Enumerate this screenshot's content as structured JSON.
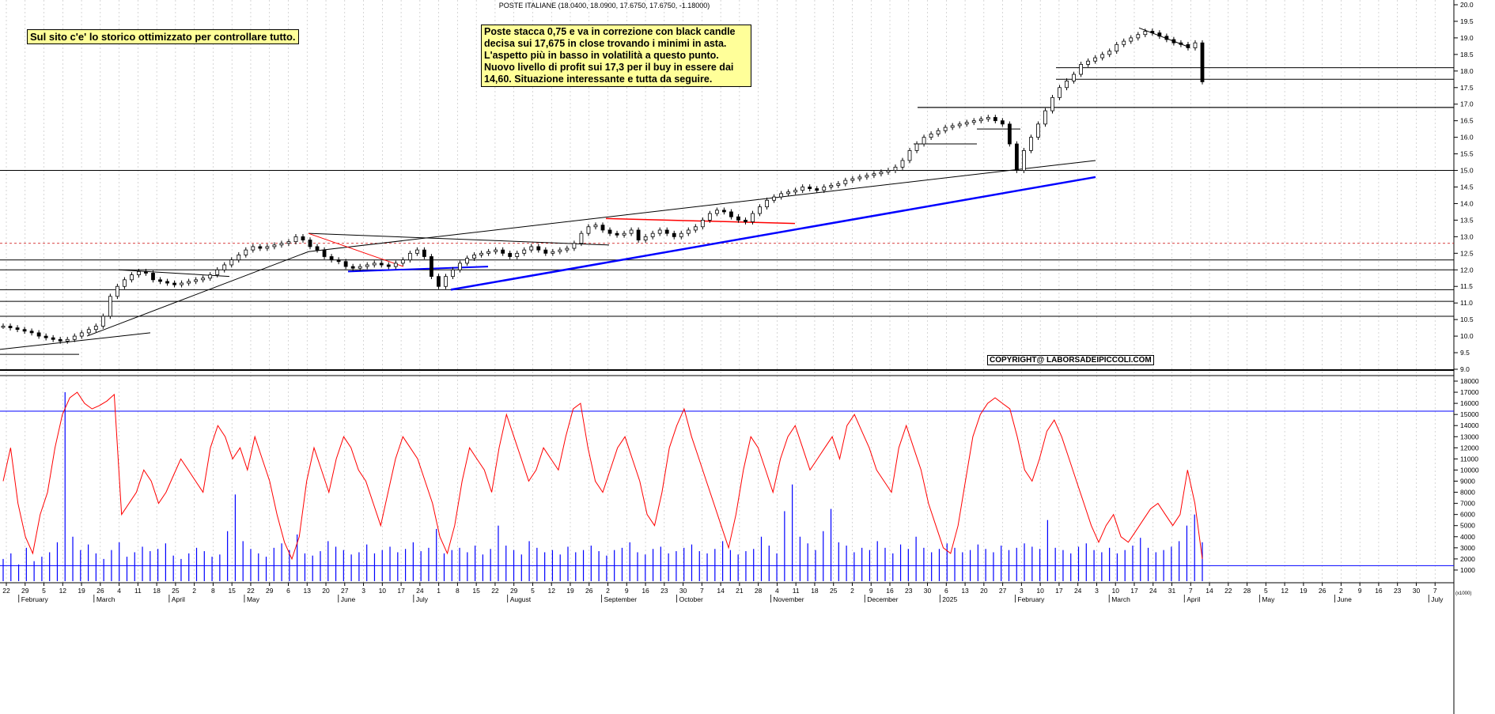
{
  "title": "POSTE ITALIANE (18.0400, 18.0900, 17.6750, 17.6750, -1.18000)",
  "note_left": "Sul sito c'e' lo storico ottimizzato per controllare tutto.",
  "note_right": "Poste stacca 0,75 e va in correzione con black candle decisa sui 17,675 in close trovando i minimi in asta. L'aspetto più in basso in volatilità a questo punto. Nuovo livello di profit sui 17,3 per il buy in essere dai 14,60. Situazione interessante e tutta da seguire.",
  "copyright": "COPYRIGHT@ LABORSADEIPICCOLI.COM",
  "colors": {
    "candle": "#000000",
    "support": "#0000ff",
    "resistance": "#ff0000",
    "oscillator": "#ff0000",
    "volume": "#0000ff",
    "dotted_level": "#cc0000"
  },
  "chart_data": [
    {
      "type": "line",
      "name": "price",
      "ylim": [
        9.0,
        20.0
      ],
      "y_ticks": [
        "20.0",
        "19.5",
        "19.0",
        "18.5",
        "18.0",
        "17.5",
        "17.0",
        "16.5",
        "16.0",
        "15.5",
        "15.0",
        "14.5",
        "14.0",
        "13.5",
        "13.0",
        "12.5",
        "12.0",
        "11.5",
        "11.0",
        "10.5",
        "10.0",
        "9.5",
        "9.0"
      ],
      "x_ticks": [
        "22",
        "29",
        "5",
        "12",
        "19",
        "26",
        "4",
        "11",
        "18",
        "25",
        "2",
        "8",
        "15",
        "22",
        "29",
        "6",
        "13",
        "20",
        "27",
        "3",
        "10",
        "17",
        "24",
        "1",
        "8",
        "15",
        "22",
        "29",
        "5",
        "12",
        "19",
        "26",
        "2",
        "9",
        "16",
        "23",
        "30",
        "7",
        "14",
        "21",
        "28",
        "4",
        "11",
        "18",
        "25",
        "2",
        "9",
        "16",
        "23",
        "30",
        "6",
        "13",
        "20",
        "27",
        "3",
        "10",
        "17",
        "24",
        "3",
        "10",
        "17",
        "24",
        "31",
        "7",
        "14",
        "22",
        "28",
        "5",
        "12",
        "19",
        "26",
        "2",
        "9",
        "16",
        "23",
        "30",
        "7"
      ],
      "months": [
        "February",
        "March",
        "April",
        "May",
        "June",
        "July",
        "August",
        "September",
        "October",
        "November",
        "December",
        "2025",
        "February",
        "March",
        "April",
        "May",
        "June",
        "July"
      ],
      "horizontal_levels": [
        18.1,
        17.75,
        16.9,
        15.0,
        12.8,
        12.3,
        12.0,
        11.4,
        11.05,
        10.6
      ],
      "closes": [
        10.3,
        10.25,
        10.2,
        10.15,
        10.1,
        10.0,
        9.95,
        9.9,
        9.85,
        9.9,
        10.0,
        10.1,
        10.2,
        10.3,
        10.6,
        11.2,
        11.5,
        11.7,
        11.85,
        11.95,
        11.9,
        11.7,
        11.65,
        11.6,
        11.55,
        11.6,
        11.65,
        11.7,
        11.75,
        11.85,
        12.0,
        12.15,
        12.3,
        12.45,
        12.6,
        12.7,
        12.65,
        12.7,
        12.75,
        12.8,
        12.85,
        13.0,
        12.9,
        12.7,
        12.6,
        12.4,
        12.3,
        12.25,
        12.1,
        12.05,
        12.1,
        12.15,
        12.2,
        12.15,
        12.1,
        12.2,
        12.3,
        12.5,
        12.6,
        12.4,
        11.8,
        11.5,
        11.8,
        12.0,
        12.2,
        12.35,
        12.45,
        12.5,
        12.55,
        12.6,
        12.5,
        12.4,
        12.5,
        12.6,
        12.7,
        12.6,
        12.5,
        12.55,
        12.6,
        12.65,
        12.8,
        13.1,
        13.3,
        13.35,
        13.2,
        13.1,
        13.05,
        13.1,
        13.2,
        12.9,
        13.0,
        13.1,
        13.2,
        13.1,
        13.0,
        13.1,
        13.2,
        13.3,
        13.5,
        13.7,
        13.8,
        13.75,
        13.6,
        13.5,
        13.45,
        13.7,
        13.9,
        14.1,
        14.2,
        14.3,
        14.35,
        14.4,
        14.5,
        14.45,
        14.4,
        14.5,
        14.55,
        14.6,
        14.7,
        14.75,
        14.8,
        14.85,
        14.9,
        14.95,
        15.0,
        15.1,
        15.3,
        15.6,
        15.8,
        16.0,
        16.1,
        16.2,
        16.3,
        16.35,
        16.4,
        16.45,
        16.5,
        16.55,
        16.6,
        16.5,
        16.4,
        15.8,
        15.0,
        15.6,
        16.0,
        16.4,
        16.8,
        17.2,
        17.5,
        17.7,
        17.9,
        18.2,
        18.3,
        18.4,
        18.5,
        18.6,
        18.8,
        18.9,
        19.0,
        19.1,
        19.2,
        19.15,
        19.05,
        18.95,
        18.85,
        18.8,
        18.7,
        18.85,
        17.675
      ]
    },
    {
      "type": "line",
      "name": "oscillator with volume",
      "ylim": [
        0,
        18000
      ],
      "y_ticks": [
        "18000",
        "17000",
        "16000",
        "15000",
        "14000",
        "13000",
        "12000",
        "11000",
        "10000",
        "9000",
        "8000",
        "7000",
        "6000",
        "5000",
        "4000",
        "3000",
        "2000",
        "1000"
      ],
      "axis_unit": "(x1000)",
      "horizontal_levels": [
        15300,
        1400
      ],
      "oscillator": [
        9000,
        12000,
        7000,
        4000,
        2500,
        6000,
        8000,
        12000,
        15000,
        16500,
        17000,
        16000,
        15500,
        15800,
        16200,
        16800,
        6000,
        7000,
        8000,
        10000,
        9000,
        7000,
        8000,
        9500,
        11000,
        10000,
        9000,
        8000,
        12000,
        14000,
        13000,
        11000,
        12000,
        10000,
        13000,
        11000,
        9000,
        6000,
        3500,
        2000,
        4000,
        9000,
        12000,
        10000,
        8000,
        11000,
        13000,
        12000,
        10000,
        9000,
        7000,
        5000,
        8000,
        11000,
        13000,
        12000,
        11000,
        9000,
        7000,
        4000,
        2500,
        5000,
        9000,
        12000,
        11000,
        10000,
        8000,
        12000,
        15000,
        13000,
        11000,
        9000,
        10000,
        12000,
        11000,
        10000,
        13000,
        15500,
        16000,
        12000,
        9000,
        8000,
        10000,
        12000,
        13000,
        11000,
        9000,
        6000,
        5000,
        8000,
        12000,
        14000,
        15500,
        13000,
        11000,
        9000,
        7000,
        5000,
        3000,
        6000,
        10000,
        13000,
        12000,
        10000,
        8000,
        11000,
        13000,
        14000,
        12000,
        10000,
        11000,
        12000,
        13000,
        11000,
        14000,
        15000,
        13500,
        12000,
        10000,
        9000,
        8000,
        12000,
        14000,
        12000,
        10000,
        7000,
        5000,
        3000,
        2500,
        5000,
        9000,
        13000,
        15000,
        16000,
        16500,
        16000,
        15500,
        13000,
        10000,
        9000,
        11000,
        13500,
        14500,
        13000,
        11000,
        9000,
        7000,
        5000,
        3500,
        5000,
        6000,
        4000,
        3500,
        4500,
        5500,
        6500,
        7000,
        6000,
        5000,
        6000,
        10000,
        7000,
        2000
      ],
      "volume": [
        2000,
        2500,
        1500,
        3000,
        1800,
        2200,
        2600,
        3500,
        17000,
        4000,
        2800,
        3300,
        2500,
        2000,
        2800,
        3500,
        2200,
        2600,
        3100,
        2700,
        2900,
        3400,
        2300,
        2000,
        2500,
        3000,
        2700,
        2200,
        2400,
        4500,
        7800,
        3600,
        2900,
        2500,
        2200,
        3000,
        3400,
        2800,
        4200,
        2500,
        2300,
        2700,
        3600,
        3100,
        2800,
        2400,
        2600,
        3300,
        2500,
        2800,
        3100,
        2600,
        2900,
        3500,
        2700,
        3000,
        4700,
        2500,
        2800,
        3000,
        2600,
        3200,
        2400,
        2900,
        5000,
        3200,
        2800,
        2400,
        3600,
        3000,
        2600,
        2800,
        2400,
        3100,
        2600,
        2800,
        3200,
        2700,
        2300,
        2800,
        3000,
        3500,
        2600,
        2400,
        2900,
        3100,
        2500,
        2700,
        3000,
        3300,
        2700,
        2500,
        2900,
        3600,
        2800,
        2400,
        2700,
        2900,
        4000,
        3200,
        2500,
        6300,
        8700,
        4000,
        3400,
        2800,
        4500,
        6500,
        3500,
        3200,
        2600,
        3000,
        2800,
        3600,
        3000,
        2500,
        3300,
        2900,
        4000,
        3000,
        2600,
        2900,
        3400,
        3000,
        2600,
        2800,
        3300,
        2900,
        2600,
        3200,
        2800,
        3000,
        3400,
        3100,
        2900,
        5500,
        3000,
        2800,
        2500,
        3100,
        3400,
        2800,
        2600,
        3000,
        2500,
        2800,
        3200,
        3900,
        3000,
        2600,
        2800,
        3100,
        3600,
        5000,
        6000,
        3500
      ]
    }
  ]
}
